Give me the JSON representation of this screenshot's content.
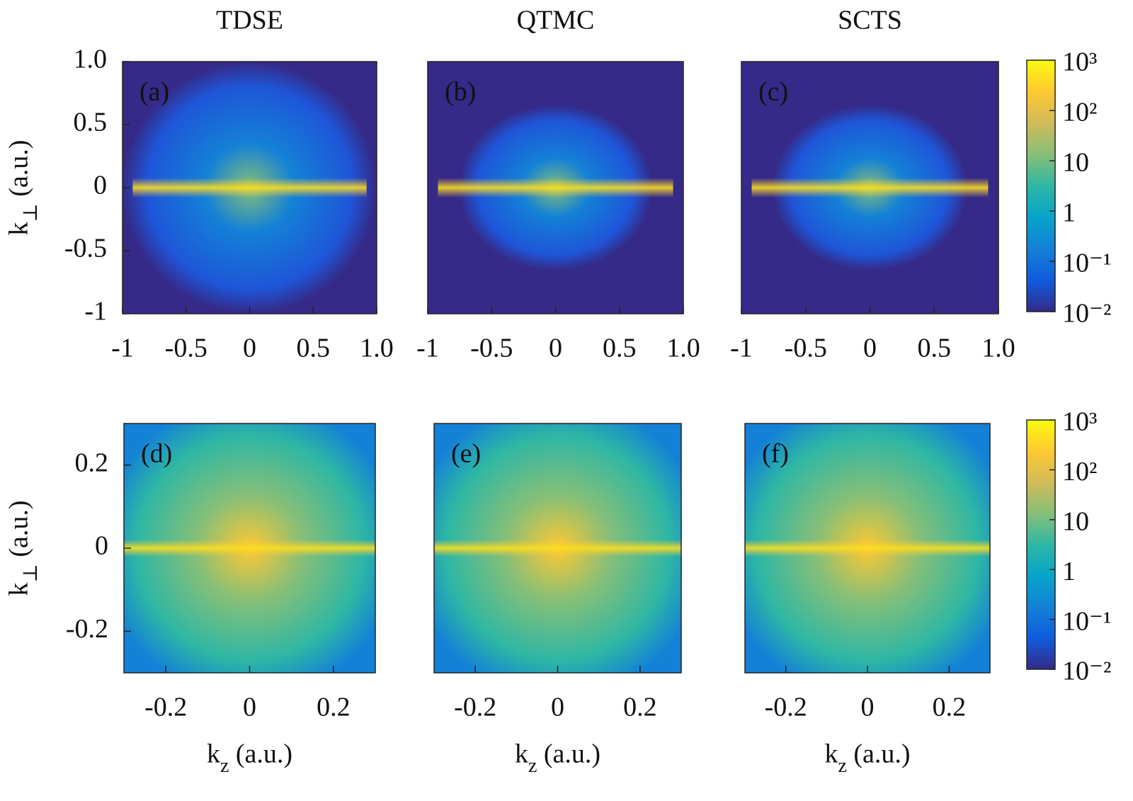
{
  "chart_data": [
    {
      "type": "heatmap",
      "title": "TDSE",
      "panel_label": "(a)",
      "xlim": [
        -1,
        1
      ],
      "ylim": [
        -1,
        1
      ],
      "xticks": [
        -1,
        -0.5,
        0,
        0.5,
        {
          "value": 1,
          "label": "1.0"
        }
      ],
      "yticks": [
        -1,
        -0.5,
        0,
        0.5,
        {
          "value": 1,
          "label": "1.0"
        }
      ],
      "ylabel": "k⊥ (a.u.)"
    },
    {
      "type": "heatmap",
      "title": "QTMC",
      "panel_label": "(b)",
      "xlim": [
        -1,
        1
      ],
      "ylim": [
        -1,
        1
      ],
      "xticks": [
        -1,
        -0.5,
        0,
        0.5,
        {
          "value": 1,
          "label": "1.0"
        }
      ]
    },
    {
      "type": "heatmap",
      "title": "SCTS",
      "panel_label": "(c)",
      "xlim": [
        -1,
        1
      ],
      "ylim": [
        -1,
        1
      ],
      "xticks": [
        -1,
        -0.5,
        0,
        0.5,
        {
          "value": 1,
          "label": "1.0"
        }
      ],
      "colorbar": {
        "log": true,
        "lim": [
          0.01,
          1000
        ],
        "ticks": [
          {
            "value": 0.01,
            "label": "10⁻²"
          },
          {
            "value": 0.1,
            "label": "10⁻¹"
          },
          1,
          10,
          {
            "value": 100,
            "label": "10²"
          },
          {
            "value": 1000,
            "label": "10³"
          }
        ],
        "colors": [
          "#352a87",
          "#0f5cdd",
          "#1481d6",
          "#06a4ca",
          "#2eb7a4",
          "#87bf77",
          "#d1bb59",
          "#fec832",
          "#f9fb0e"
        ]
      }
    },
    {
      "type": "heatmap",
      "panel_label": "(d)",
      "xlim": [
        -0.3,
        0.3
      ],
      "ylim": [
        -0.3,
        0.3
      ],
      "xticks": [
        -0.2,
        0,
        0.2
      ],
      "yticks": [
        -0.2,
        0,
        0.2
      ],
      "xlabel": "kz (a.u.)",
      "ylabel": "k⊥ (a.u.)"
    },
    {
      "type": "heatmap",
      "panel_label": "(e)",
      "xlim": [
        -0.3,
        0.3
      ],
      "ylim": [
        -0.3,
        0.3
      ],
      "xticks": [
        -0.2,
        0,
        0.2
      ],
      "xlabel": "kz (a.u.)"
    },
    {
      "type": "heatmap",
      "panel_label": "(f)",
      "xlim": [
        -0.3,
        0.3
      ],
      "ylim": [
        -0.3,
        0.3
      ],
      "xticks": [
        -0.2,
        0,
        0.2
      ],
      "xlabel": "kz (a.u.)",
      "colorbar": {
        "log": true,
        "lim": [
          0.01,
          1000
        ],
        "ticks": [
          {
            "value": 0.01,
            "label": "10⁻²"
          },
          {
            "value": 0.1,
            "label": "10⁻¹"
          },
          1,
          10,
          {
            "value": 100,
            "label": "10²"
          },
          {
            "value": 1000,
            "label": "10³"
          }
        ],
        "colors": [
          "#352a87",
          "#0f5cdd",
          "#1481d6",
          "#06a4ca",
          "#2eb7a4",
          "#87bf77",
          "#d1bb59",
          "#fec832",
          "#f9fb0e"
        ]
      }
    }
  ]
}
